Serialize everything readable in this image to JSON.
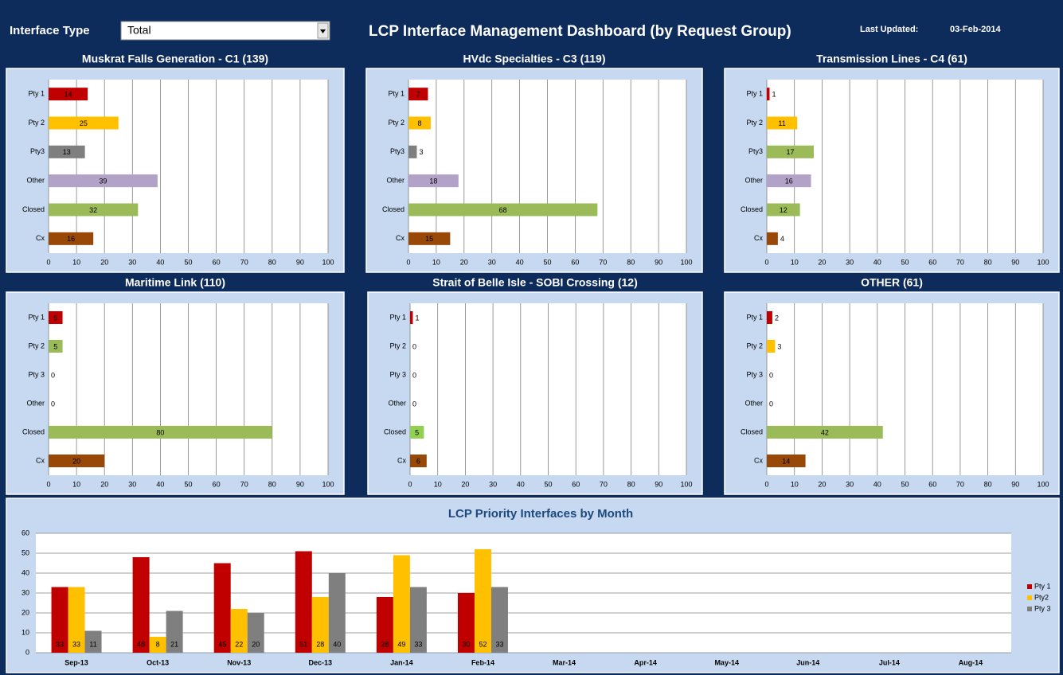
{
  "header": {
    "filter_label": "Interface Type",
    "filter_value": "Total",
    "title": "LCP Interface Management Dashboard (by Request Group)",
    "updated_label": "Last Updated:",
    "updated_date": "03-Feb-2014"
  },
  "chart_data": [
    {
      "type": "bar",
      "orientation": "horizontal",
      "title": "Muskrat Falls Generation - C1 (139)",
      "categories": [
        "Pty 1",
        "Pty 2",
        "Pty3",
        "Other",
        "Closed",
        "Cx"
      ],
      "values": [
        14,
        25,
        13,
        39,
        32,
        16
      ],
      "colors": [
        "#c00000",
        "#ffc000",
        "#7f7f7f",
        "#b3a2c7",
        "#9bbb59",
        "#984807"
      ],
      "xlim": [
        0,
        100
      ],
      "xticks": [
        0,
        10,
        20,
        30,
        40,
        50,
        60,
        70,
        80,
        90,
        100
      ],
      "grid": true
    },
    {
      "type": "bar",
      "orientation": "horizontal",
      "title": "HVdc Specialties - C3 (119)",
      "categories": [
        "Pty 1",
        "Pty 2",
        "Pty3",
        "Other",
        "Closed",
        "Cx"
      ],
      "values": [
        7,
        8,
        3,
        18,
        68,
        15
      ],
      "colors": [
        "#c00000",
        "#ffc000",
        "#7f7f7f",
        "#b3a2c7",
        "#9bbb59",
        "#984807"
      ],
      "xlim": [
        0,
        100
      ],
      "xticks": [
        0,
        10,
        20,
        30,
        40,
        50,
        60,
        70,
        80,
        90,
        100
      ],
      "grid": true
    },
    {
      "type": "bar",
      "orientation": "horizontal",
      "title": "Transmission Lines - C4 (61)",
      "categories": [
        "Pty 1",
        "Pty 2",
        "Pty3",
        "Other",
        "Closed",
        "Cx"
      ],
      "values": [
        1,
        11,
        17,
        16,
        12,
        4
      ],
      "colors": [
        "#c00000",
        "#ffc000",
        "#9bbb59",
        "#b3a2c7",
        "#9bbb59",
        "#984807"
      ],
      "xlim": [
        0,
        100
      ],
      "xticks": [
        0,
        10,
        20,
        30,
        40,
        50,
        60,
        70,
        80,
        90,
        100
      ],
      "grid": true
    },
    {
      "type": "bar",
      "orientation": "horizontal",
      "title": "Maritime Link (110)",
      "categories": [
        "Pty 1",
        "Pty 2",
        "Pty 3",
        "Other",
        "Closed",
        "Cx"
      ],
      "values": [
        5,
        5,
        0,
        0,
        80,
        20
      ],
      "colors": [
        "#c00000",
        "#9bbb59",
        "#7f7f7f",
        "#b3a2c7",
        "#9bbb59",
        "#984807"
      ],
      "xlim": [
        0,
        100
      ],
      "xticks": [
        0,
        10,
        20,
        30,
        40,
        50,
        60,
        70,
        80,
        90,
        100
      ],
      "grid": true
    },
    {
      "type": "bar",
      "orientation": "horizontal",
      "title": "Strait of Belle Isle - SOBI Crossing (12)",
      "categories": [
        "Pty 1",
        "Pty 2",
        "Pty 3",
        "Other",
        "Closed",
        "Cx"
      ],
      "values": [
        1,
        0,
        0,
        0,
        5,
        6
      ],
      "colors": [
        "#c00000",
        "#ffc000",
        "#7f7f7f",
        "#b3a2c7",
        "#92d050",
        "#984807"
      ],
      "xlim": [
        0,
        100
      ],
      "xticks": [
        0,
        10,
        20,
        30,
        40,
        50,
        60,
        70,
        80,
        90,
        100
      ],
      "grid": true
    },
    {
      "type": "bar",
      "orientation": "horizontal",
      "title": "OTHER (61)",
      "categories": [
        "Pty 1",
        "Pty 2",
        "Pty 3",
        "Other",
        "Closed",
        "Cx"
      ],
      "values": [
        2,
        3,
        0,
        0,
        42,
        14
      ],
      "colors": [
        "#c00000",
        "#ffc000",
        "#7f7f7f",
        "#b3a2c7",
        "#9bbb59",
        "#984807"
      ],
      "xlim": [
        0,
        100
      ],
      "xticks": [
        0,
        10,
        20,
        30,
        40,
        50,
        60,
        70,
        80,
        90,
        100
      ],
      "grid": true
    },
    {
      "type": "bar",
      "orientation": "vertical",
      "title": "LCP Priority Interfaces by Month",
      "categories": [
        "Sep-13",
        "Oct-13",
        "Nov-13",
        "Dec-13",
        "Jan-14",
        "Feb-14",
        "Mar-14",
        "Apr-14",
        "May-14",
        "Jun-14",
        "Jul-14",
        "Aug-14"
      ],
      "series": [
        {
          "name": "Pty 1",
          "color": "#c00000",
          "values": [
            33,
            48,
            45,
            51,
            28,
            30,
            null,
            null,
            null,
            null,
            null,
            null
          ]
        },
        {
          "name": "Pty2",
          "color": "#ffc000",
          "values": [
            33,
            8,
            22,
            28,
            49,
            52,
            null,
            null,
            null,
            null,
            null,
            null
          ]
        },
        {
          "name": "Pty 3",
          "color": "#7f7f7f",
          "values": [
            11,
            21,
            20,
            40,
            33,
            33,
            null,
            null,
            null,
            null,
            null,
            null
          ]
        }
      ],
      "ylim": [
        0,
        60
      ],
      "yticks": [
        0,
        10,
        20,
        30,
        40,
        50,
        60
      ],
      "grid": true,
      "legend": "right"
    }
  ]
}
